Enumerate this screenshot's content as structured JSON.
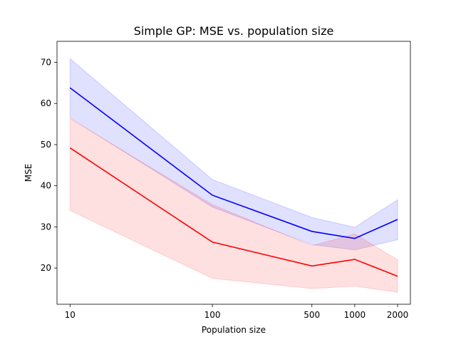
{
  "chart_data": {
    "type": "line",
    "title": "Simple GP: MSE vs. population size",
    "xlabel": "Population size",
    "ylabel": "MSE",
    "x_scale": "log",
    "xlim": [
      8.1,
      2460
    ],
    "ylim": [
      11.2,
      75.1
    ],
    "x": [
      10,
      100,
      500,
      1000,
      2000
    ],
    "x_tick_labels": [
      "10",
      "100",
      "500",
      "1000",
      "2000"
    ],
    "y_ticks": [
      20,
      30,
      40,
      50,
      60,
      70
    ],
    "y_tick_labels": [
      "20",
      "30",
      "40",
      "50",
      "60",
      "70"
    ],
    "grid": false,
    "legend": "none",
    "series": [
      {
        "color": "#0000ff",
        "values": [
          63.8,
          37.7,
          28.9,
          27.2,
          31.8
        ],
        "band_lower": [
          56.5,
          34.8,
          25.7,
          24.4,
          26.9
        ],
        "band_upper": [
          70.9,
          41.5,
          32.3,
          29.9,
          36.6
        ]
      },
      {
        "color": "#ff0000",
        "values": [
          49.2,
          26.3,
          20.5,
          22.1,
          18.0
        ],
        "band_lower": [
          34.0,
          17.5,
          15.0,
          15.6,
          14.1
        ],
        "band_upper": [
          56.3,
          35.4,
          25.4,
          28.3,
          22.0
        ]
      }
    ]
  }
}
